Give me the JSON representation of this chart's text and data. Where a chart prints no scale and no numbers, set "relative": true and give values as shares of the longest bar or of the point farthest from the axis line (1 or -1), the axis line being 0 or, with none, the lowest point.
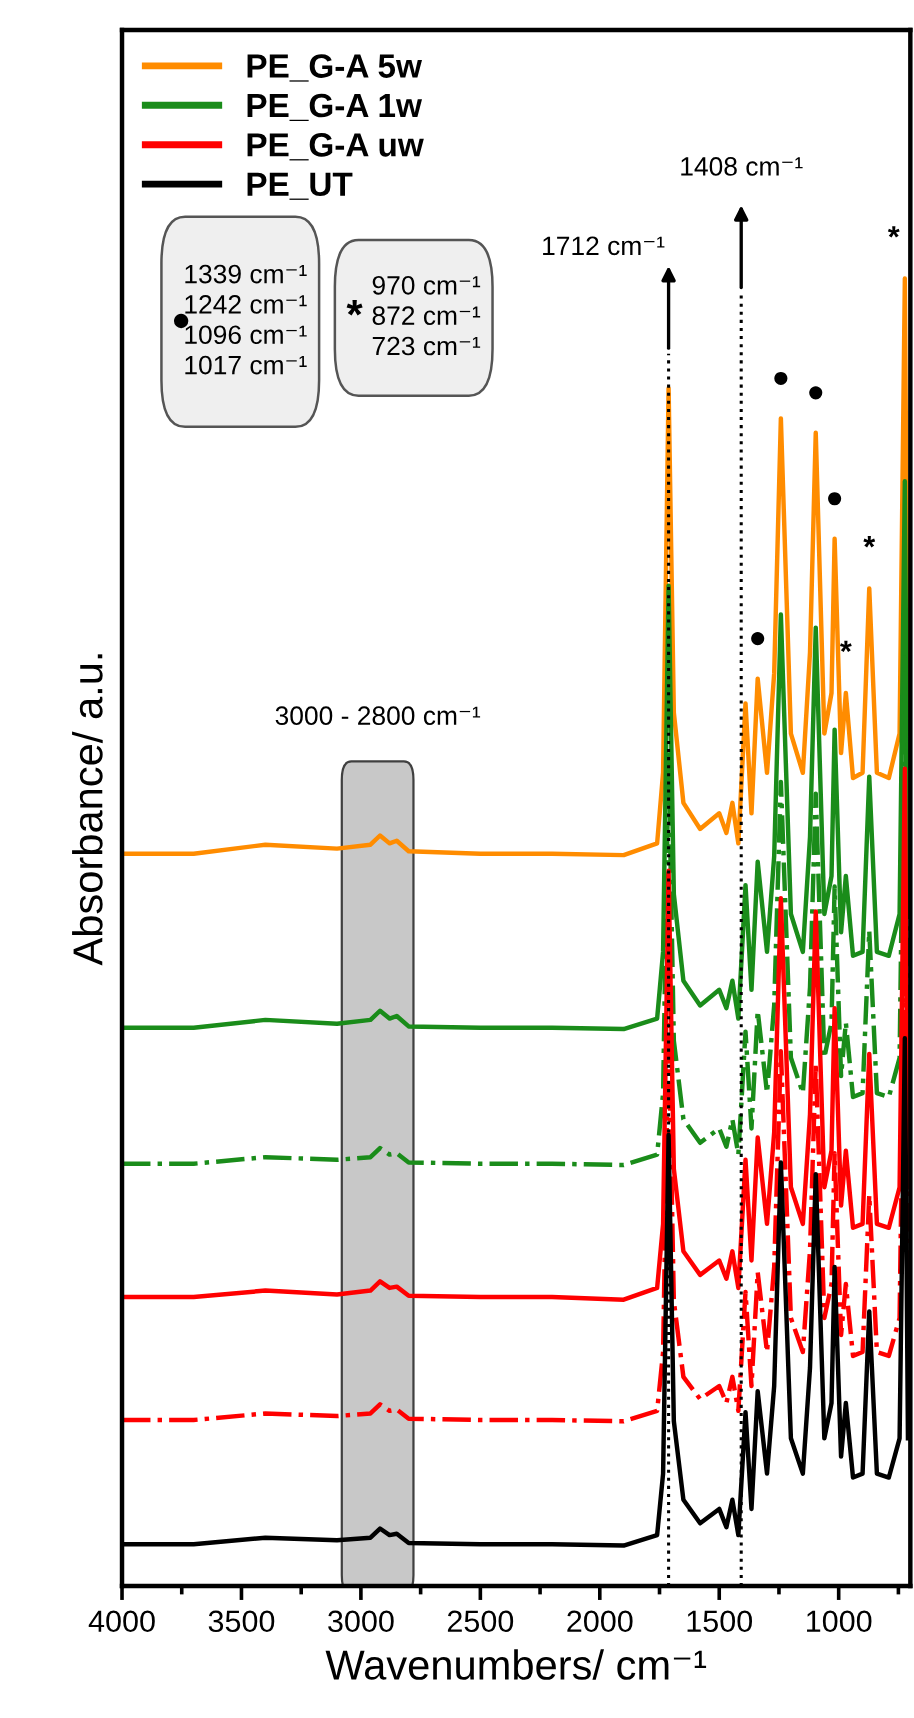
{
  "chart_data": {
    "type": "line",
    "relative": true,
    "xlabel": "Wavenumbers/ cm⁻¹",
    "ylabel": "Absorbance/ a.u.",
    "xlim": [
      4000,
      700
    ],
    "xticks": [
      4000,
      {
        "value": 3750,
        "label": null
      },
      3500,
      {
        "value": 3250,
        "label": null
      },
      3000,
      {
        "value": 2750,
        "label": null
      },
      2500,
      {
        "value": 2250,
        "label": null
      },
      2000,
      {
        "value": 1750,
        "label": null
      },
      1500,
      {
        "value": 1250,
        "label": null
      },
      1000,
      {
        "value": 750,
        "label": null
      }
    ],
    "tick_labels": "x",
    "grid": false,
    "legend": "top left",
    "x": [
      4000,
      3700,
      3400,
      3100,
      2960,
      2920,
      2880,
      2850,
      2800,
      2500,
      2200,
      1900,
      1760,
      1735,
      1712,
      1690,
      1650,
      1580,
      1500,
      1470,
      1445,
      1420,
      1390,
      1365,
      1339,
      1300,
      1270,
      1242,
      1200,
      1150,
      1120,
      1096,
      1060,
      1030,
      1017,
      990,
      970,
      940,
      900,
      872,
      840,
      790,
      745,
      723,
      710
    ],
    "series": [
      {
        "name": "PE_G-A 5w",
        "color": "#ff8c00",
        "line_style": "solid",
        "values": [
          0.56,
          0.56,
          0.567,
          0.564,
          0.567,
          0.574,
          0.568,
          0.57,
          0.562,
          0.56,
          0.56,
          0.559,
          0.568,
          0.622,
          0.916,
          0.668,
          0.599,
          0.579,
          0.591,
          0.576,
          0.599,
          0.568,
          0.675,
          0.591,
          0.694,
          0.622,
          0.698,
          0.893,
          0.652,
          0.622,
          0.714,
          0.882,
          0.652,
          0.683,
          0.801,
          0.637,
          0.683,
          0.618,
          0.622,
          0.763,
          0.622,
          0.618,
          0.652,
          1.0,
          0.652
        ]
      },
      {
        "name": "PE_G-A 1w",
        "color": "#1a8c1a",
        "line_style": "solid",
        "values": [
          0.427,
          0.427,
          0.433,
          0.43,
          0.433,
          0.44,
          0.434,
          0.436,
          0.428,
          0.427,
          0.427,
          0.426,
          0.434,
          0.485,
          0.765,
          0.529,
          0.463,
          0.444,
          0.456,
          0.442,
          0.463,
          0.434,
          0.536,
          0.456,
          0.554,
          0.485,
          0.558,
          0.743,
          0.514,
          0.485,
          0.573,
          0.733,
          0.514,
          0.543,
          0.655,
          0.5,
          0.543,
          0.482,
          0.485,
          0.619,
          0.485,
          0.482,
          0.514,
          0.845,
          0.514
        ]
      },
      {
        "color": "#1a8c1a",
        "line_style": "dashdot",
        "values": [
          0.323,
          0.323,
          0.328,
          0.326,
          0.328,
          0.335,
          0.33,
          0.331,
          0.324,
          0.323,
          0.323,
          0.322,
          0.33,
          0.377,
          0.636,
          0.417,
          0.357,
          0.339,
          0.35,
          0.336,
          0.357,
          0.33,
          0.424,
          0.35,
          0.44,
          0.377,
          0.444,
          0.615,
          0.404,
          0.377,
          0.458,
          0.606,
          0.404,
          0.431,
          0.535,
          0.39,
          0.431,
          0.374,
          0.377,
          0.501,
          0.377,
          0.374,
          0.404,
          0.71,
          0.404
        ]
      },
      {
        "name": "PE_G-A uw",
        "color": "#ff0000",
        "line_style": "solid",
        "values": [
          0.221,
          0.221,
          0.226,
          0.223,
          0.226,
          0.233,
          0.228,
          0.229,
          0.222,
          0.221,
          0.221,
          0.219,
          0.228,
          0.277,
          0.547,
          0.319,
          0.256,
          0.238,
          0.249,
          0.235,
          0.256,
          0.228,
          0.326,
          0.249,
          0.343,
          0.277,
          0.347,
          0.526,
          0.305,
          0.277,
          0.361,
          0.516,
          0.305,
          0.333,
          0.442,
          0.291,
          0.333,
          0.274,
          0.277,
          0.407,
          0.277,
          0.274,
          0.305,
          0.625,
          0.305
        ]
      },
      {
        "color": "#ff0000",
        "line_style": "dashdot",
        "values": [
          0.127,
          0.127,
          0.132,
          0.13,
          0.132,
          0.139,
          0.134,
          0.135,
          0.128,
          0.127,
          0.127,
          0.126,
          0.134,
          0.179,
          0.429,
          0.218,
          0.16,
          0.143,
          0.153,
          0.14,
          0.16,
          0.134,
          0.225,
          0.153,
          0.24,
          0.179,
          0.244,
          0.409,
          0.205,
          0.179,
          0.257,
          0.4,
          0.205,
          0.231,
          0.331,
          0.192,
          0.231,
          0.176,
          0.179,
          0.299,
          0.179,
          0.176,
          0.205,
          0.5,
          0.205
        ]
      },
      {
        "name": "PE_UT",
        "color": "#000000",
        "line_style": "solid",
        "values": [
          0.032,
          0.032,
          0.037,
          0.035,
          0.037,
          0.044,
          0.039,
          0.04,
          0.033,
          0.032,
          0.032,
          0.031,
          0.039,
          0.086,
          0.345,
          0.126,
          0.066,
          0.048,
          0.059,
          0.045,
          0.066,
          0.039,
          0.133,
          0.059,
          0.149,
          0.086,
          0.153,
          0.324,
          0.113,
          0.086,
          0.167,
          0.315,
          0.113,
          0.14,
          0.244,
          0.099,
          0.14,
          0.083,
          0.086,
          0.21,
          0.086,
          0.083,
          0.113,
          0.419,
          0.113
        ]
      }
    ],
    "ref_lines": [
      {
        "axis": "x",
        "value": 1712,
        "label": "1712 cm⁻¹",
        "line_style": "dotted",
        "color": "#000000"
      },
      {
        "axis": "x",
        "value": 1408,
        "label": "1408 cm⁻¹",
        "line_style": "dotted",
        "color": "#000000"
      }
    ],
    "bands": [
      {
        "axis": "x",
        "from": 3080,
        "to": 2780,
        "label": "3000 - 2800 cm⁻¹",
        "color": "#c8c8c8"
      }
    ],
    "annotations": [
      "●",
      "1339 cm⁻¹\n1242 cm⁻¹\n1096 cm⁻¹\n1017 cm⁻¹",
      "*",
      "970 cm⁻¹\n872 cm⁻¹\n723 cm⁻¹",
      {
        "text": "●",
        "x": 1339,
        "y": 0.694
      },
      {
        "text": "●",
        "x": 1242,
        "y": 0.893
      },
      {
        "text": "●",
        "x": 1096,
        "y": 0.882
      },
      {
        "text": "●",
        "x": 1017,
        "y": 0.801
      },
      {
        "text": "*",
        "x": 970,
        "y": 0.683
      },
      {
        "text": "*",
        "x": 872,
        "y": 0.763
      },
      {
        "text": "*",
        "x": 723,
        "y": 1.0
      }
    ]
  }
}
